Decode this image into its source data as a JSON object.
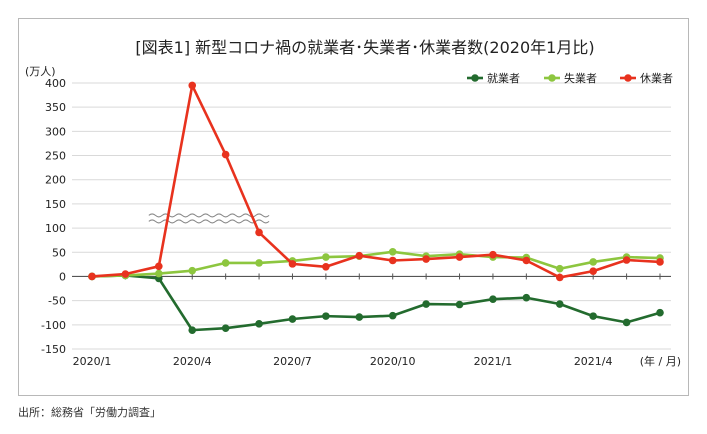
{
  "chart_data": {
    "type": "line",
    "title": "[図表1] 新型コロナ禍の就業者･失業者･休業者数(2020年1月比)",
    "ylabel": "(万人)",
    "xlabel": "(年 / 月)",
    "ylim": [
      -150,
      400
    ],
    "yticks": [
      400,
      350,
      300,
      250,
      200,
      150,
      100,
      50,
      0,
      -50,
      -100,
      -150
    ],
    "x": [
      "2020/1",
      "2020/2",
      "2020/3",
      "2020/4",
      "2020/5",
      "2020/6",
      "2020/7",
      "2020/8",
      "2020/9",
      "2020/10",
      "2020/11",
      "2020/12",
      "2021/1",
      "2021/2",
      "2021/3",
      "2021/4",
      "2021/5",
      "2021/6"
    ],
    "xtick_labels": [
      {
        "index": 0,
        "label": "2020/1"
      },
      {
        "index": 3,
        "label": "2020/4"
      },
      {
        "index": 6,
        "label": "2020/7"
      },
      {
        "index": 9,
        "label": "2020/10"
      },
      {
        "index": 12,
        "label": "2021/1"
      },
      {
        "index": 15,
        "label": "2021/4"
      }
    ],
    "grid": true,
    "legend": "top-right",
    "axis_break": {
      "y": 120,
      "x_from": 1.7,
      "x_to": 5.3
    },
    "series": [
      {
        "name": "就業者",
        "color": "#236b2e",
        "values": [
          0,
          2,
          -4,
          -111,
          -107,
          -98,
          -88,
          -82,
          -84,
          -81,
          -57,
          -58,
          -47,
          -44,
          -57,
          -82,
          -95,
          -75
        ]
      },
      {
        "name": "失業者",
        "color": "#8dc63f",
        "values": [
          0,
          2,
          6,
          12,
          28,
          28,
          32,
          40,
          42,
          51,
          42,
          46,
          40,
          39,
          16,
          30,
          40,
          38
        ]
      },
      {
        "name": "休業者",
        "color": "#e8321e",
        "values": [
          0,
          5,
          21,
          395,
          252,
          91,
          26,
          20,
          43,
          33,
          36,
          40,
          45,
          33,
          -2,
          11,
          34,
          30
        ]
      }
    ]
  },
  "source": "出所：総務省「労働力調査」"
}
